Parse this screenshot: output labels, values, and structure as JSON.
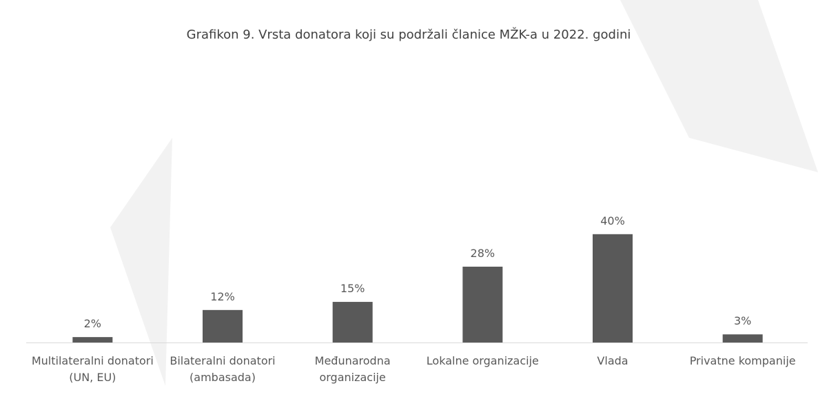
{
  "chart_data": {
    "type": "bar",
    "title": "Grafikon 9. Vrsta donatora koji su podržali članice MŽK-a u 2022. godini",
    "categories": [
      "Multilateralni donatori (UN, EU)",
      "Bilateralni donatori (ambasada)",
      "Međunarodna organizacije",
      "Lokalne organizacije",
      "Vlada",
      "Privatne kompanije"
    ],
    "values": [
      2,
      12,
      15,
      28,
      40,
      3
    ],
    "value_labels": [
      "2%",
      "12%",
      "15%",
      "28%",
      "40%",
      "3%"
    ],
    "color": "#595959"
  }
}
